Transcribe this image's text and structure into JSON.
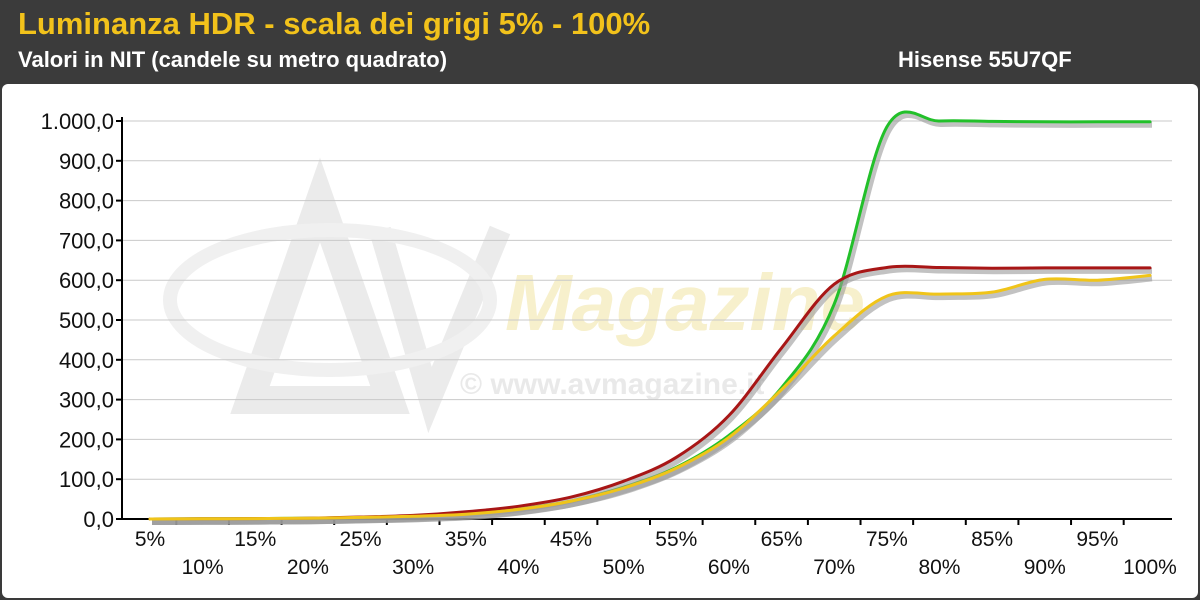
{
  "header": {
    "title": "Luminanza HDR - scala dei grigi 5% - 100%",
    "subtitle": "Valori in NIT (candele su metro quadrato)",
    "model": "Hisense 55U7QF"
  },
  "watermark": {
    "brand": "AV Magazine",
    "copyright": "© www.avmagazine.it"
  },
  "colors": {
    "title": "#f2c21b",
    "header_bg": "#3b3b3b",
    "green": "#22c02a",
    "red": "#a81616",
    "yellow": "#f0c419"
  },
  "chart_data": {
    "type": "line",
    "title": "Luminanza HDR - scala dei grigi 5% - 100%",
    "ylabel": "Valori in NIT (candele su metro quadrato)",
    "xlabel": "",
    "categories": [
      "5%",
      "10%",
      "15%",
      "20%",
      "25%",
      "30%",
      "35%",
      "40%",
      "45%",
      "50%",
      "55%",
      "60%",
      "65%",
      "70%",
      "75%",
      "80%",
      "85%",
      "90%",
      "95%",
      "100%"
    ],
    "ylim": [
      0,
      1000
    ],
    "yticks": [
      "0,0",
      "100,0",
      "200,0",
      "300,0",
      "400,0",
      "500,0",
      "600,0",
      "700,0",
      "800,0",
      "900,0",
      "1.000,0"
    ],
    "grid": true,
    "legend": "none",
    "series": [
      {
        "color": "#22c02a",
        "values": [
          0,
          0.5,
          1,
          2,
          4,
          7,
          13,
          25,
          45,
          80,
          130,
          210,
          330,
          540,
          985,
          1000,
          999,
          998,
          998,
          998
        ]
      },
      {
        "color": "#a81616",
        "values": [
          0,
          0.5,
          1,
          2,
          5,
          9,
          18,
          32,
          55,
          95,
          155,
          260,
          430,
          590,
          632,
          632,
          630,
          631,
          631,
          631
        ]
      },
      {
        "color": "#f0c419",
        "values": [
          0,
          0.5,
          1,
          2,
          4,
          7,
          12,
          24,
          45,
          78,
          128,
          205,
          325,
          460,
          560,
          565,
          570,
          602,
          600,
          612
        ]
      }
    ]
  }
}
